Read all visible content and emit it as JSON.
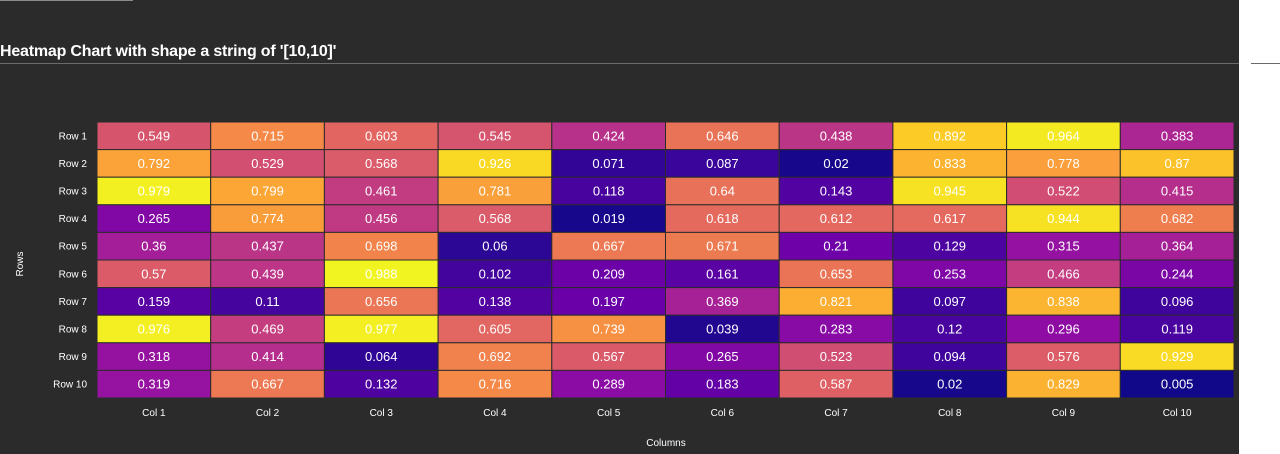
{
  "title": "Heatmap Chart with shape a string of '[10,10]'",
  "chart_data": {
    "type": "heatmap",
    "title": "Heatmap Chart with shape a string of '[10,10]'",
    "xlabel": "Columns",
    "ylabel": "Rows",
    "columns": [
      "Col 1",
      "Col 2",
      "Col 3",
      "Col 4",
      "Col 5",
      "Col 6",
      "Col 7",
      "Col 8",
      "Col 9",
      "Col 10"
    ],
    "rows": [
      "Row 1",
      "Row 2",
      "Row 3",
      "Row 4",
      "Row 5",
      "Row 6",
      "Row 7",
      "Row 8",
      "Row 9",
      "Row 10"
    ],
    "values": [
      [
        0.549,
        0.715,
        0.603,
        0.545,
        0.424,
        0.646,
        0.438,
        0.892,
        0.964,
        0.383
      ],
      [
        0.792,
        0.529,
        0.568,
        0.926,
        0.071,
        0.087,
        0.02,
        0.833,
        0.778,
        0.87
      ],
      [
        0.979,
        0.799,
        0.461,
        0.781,
        0.118,
        0.64,
        0.143,
        0.945,
        0.522,
        0.415
      ],
      [
        0.265,
        0.774,
        0.456,
        0.568,
        0.019,
        0.618,
        0.612,
        0.617,
        0.944,
        0.682
      ],
      [
        0.36,
        0.437,
        0.698,
        0.06,
        0.667,
        0.671,
        0.21,
        0.129,
        0.315,
        0.364
      ],
      [
        0.57,
        0.439,
        0.988,
        0.102,
        0.209,
        0.161,
        0.653,
        0.253,
        0.466,
        0.244
      ],
      [
        0.159,
        0.11,
        0.656,
        0.138,
        0.197,
        0.369,
        0.821,
        0.097,
        0.838,
        0.096
      ],
      [
        0.976,
        0.469,
        0.977,
        0.605,
        0.739,
        0.039,
        0.283,
        0.12,
        0.296,
        0.119
      ],
      [
        0.318,
        0.414,
        0.064,
        0.692,
        0.567,
        0.265,
        0.523,
        0.094,
        0.576,
        0.929
      ],
      [
        0.319,
        0.667,
        0.132,
        0.716,
        0.289,
        0.183,
        0.587,
        0.02,
        0.829,
        0.005
      ]
    ],
    "colorscale": "plasma",
    "value_range": [
      0,
      1
    ],
    "legend": "none",
    "grid": false
  },
  "colors": {
    "background": "#2b2b2b",
    "text": "#ffffff",
    "cell_border": "#2b2b2b"
  }
}
